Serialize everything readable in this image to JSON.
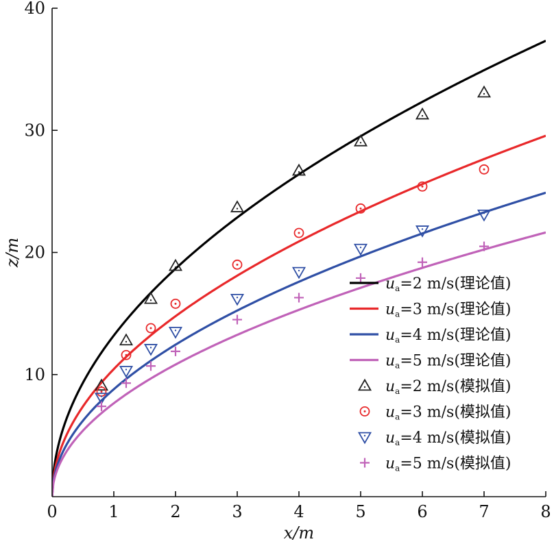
{
  "chart_data": {
    "type": "line",
    "title": "",
    "xlabel": "x/m",
    "ylabel": "z/m",
    "xlim": [
      0,
      8
    ],
    "ylim": [
      0,
      40
    ],
    "xticks": [
      0,
      1,
      2,
      3,
      4,
      5,
      6,
      7,
      8
    ],
    "yticks": [
      10,
      20,
      30,
      40
    ],
    "grid": false,
    "legend_position": "bottom-right",
    "curves": [
      {
        "name": "u_a=2 m/s(理论值)",
        "label_prefix": "u",
        "label_sub": "a",
        "label_rest": "=2 m/s(理论值)",
        "color": "#000000",
        "coef": 13.2,
        "exponent": 0.5
      },
      {
        "name": "u_a=3 m/s(理论值)",
        "label_prefix": "u",
        "label_sub": "a",
        "label_rest": "=3 m/s(理论值)",
        "color": "#e8282a",
        "coef": 10.45,
        "exponent": 0.5
      },
      {
        "name": "u_a=4 m/s(理论值)",
        "label_prefix": "u",
        "label_sub": "a",
        "label_rest": "=4 m/s(理论值)",
        "color": "#2f4fa5",
        "coef": 8.8,
        "exponent": 0.5
      },
      {
        "name": "u_a=5 m/s(理论值)",
        "label_prefix": "u",
        "label_sub": "a",
        "label_rest": "=5 m/s(理论值)",
        "color": "#c062b8",
        "coef": 7.65,
        "exponent": 0.5
      }
    ],
    "scatter_series": [
      {
        "name": "u_a=2 m/s(模拟值)",
        "label_prefix": "u",
        "label_sub": "a",
        "label_rest": "=2 m/s(模拟值)",
        "color": "#222222",
        "marker": "triangle-up",
        "x": [
          0.8,
          1.2,
          1.6,
          2,
          3,
          4,
          5,
          6,
          7
        ],
        "y": [
          9.1,
          12.8,
          16.2,
          18.9,
          23.7,
          26.7,
          29.1,
          31.3,
          33.1
        ]
      },
      {
        "name": "u_a=3 m/s(模拟值)",
        "label_prefix": "u",
        "label_sub": "a",
        "label_rest": "=3 m/s(模拟值)",
        "color": "#e8282a",
        "marker": "circle-dot",
        "x": [
          0.8,
          1.2,
          1.6,
          2,
          3,
          4,
          5,
          6,
          7
        ],
        "y": [
          8.6,
          11.6,
          13.8,
          15.8,
          19.0,
          21.6,
          23.6,
          25.4,
          26.8
        ]
      },
      {
        "name": "u_a=4 m/s(模拟值)",
        "label_prefix": "u",
        "label_sub": "a",
        "label_rest": "=4 m/s(模拟值)",
        "color": "#2f4fa5",
        "marker": "triangle-down",
        "x": [
          0.8,
          1.2,
          1.6,
          2,
          3,
          4,
          5,
          6,
          7
        ],
        "y": [
          8.1,
          10.3,
          12.1,
          13.5,
          16.2,
          18.4,
          20.3,
          21.8,
          23.1
        ]
      },
      {
        "name": "u_a=5 m/s(模拟值)",
        "label_prefix": "u",
        "label_sub": "a",
        "label_rest": "=5 m/s(模拟值)",
        "color": "#c062b8",
        "marker": "plus",
        "x": [
          0.8,
          1.2,
          1.6,
          2,
          3,
          4,
          5,
          6,
          7
        ],
        "y": [
          7.4,
          9.3,
          10.7,
          11.9,
          14.5,
          16.3,
          17.9,
          19.2,
          20.5
        ]
      }
    ]
  }
}
